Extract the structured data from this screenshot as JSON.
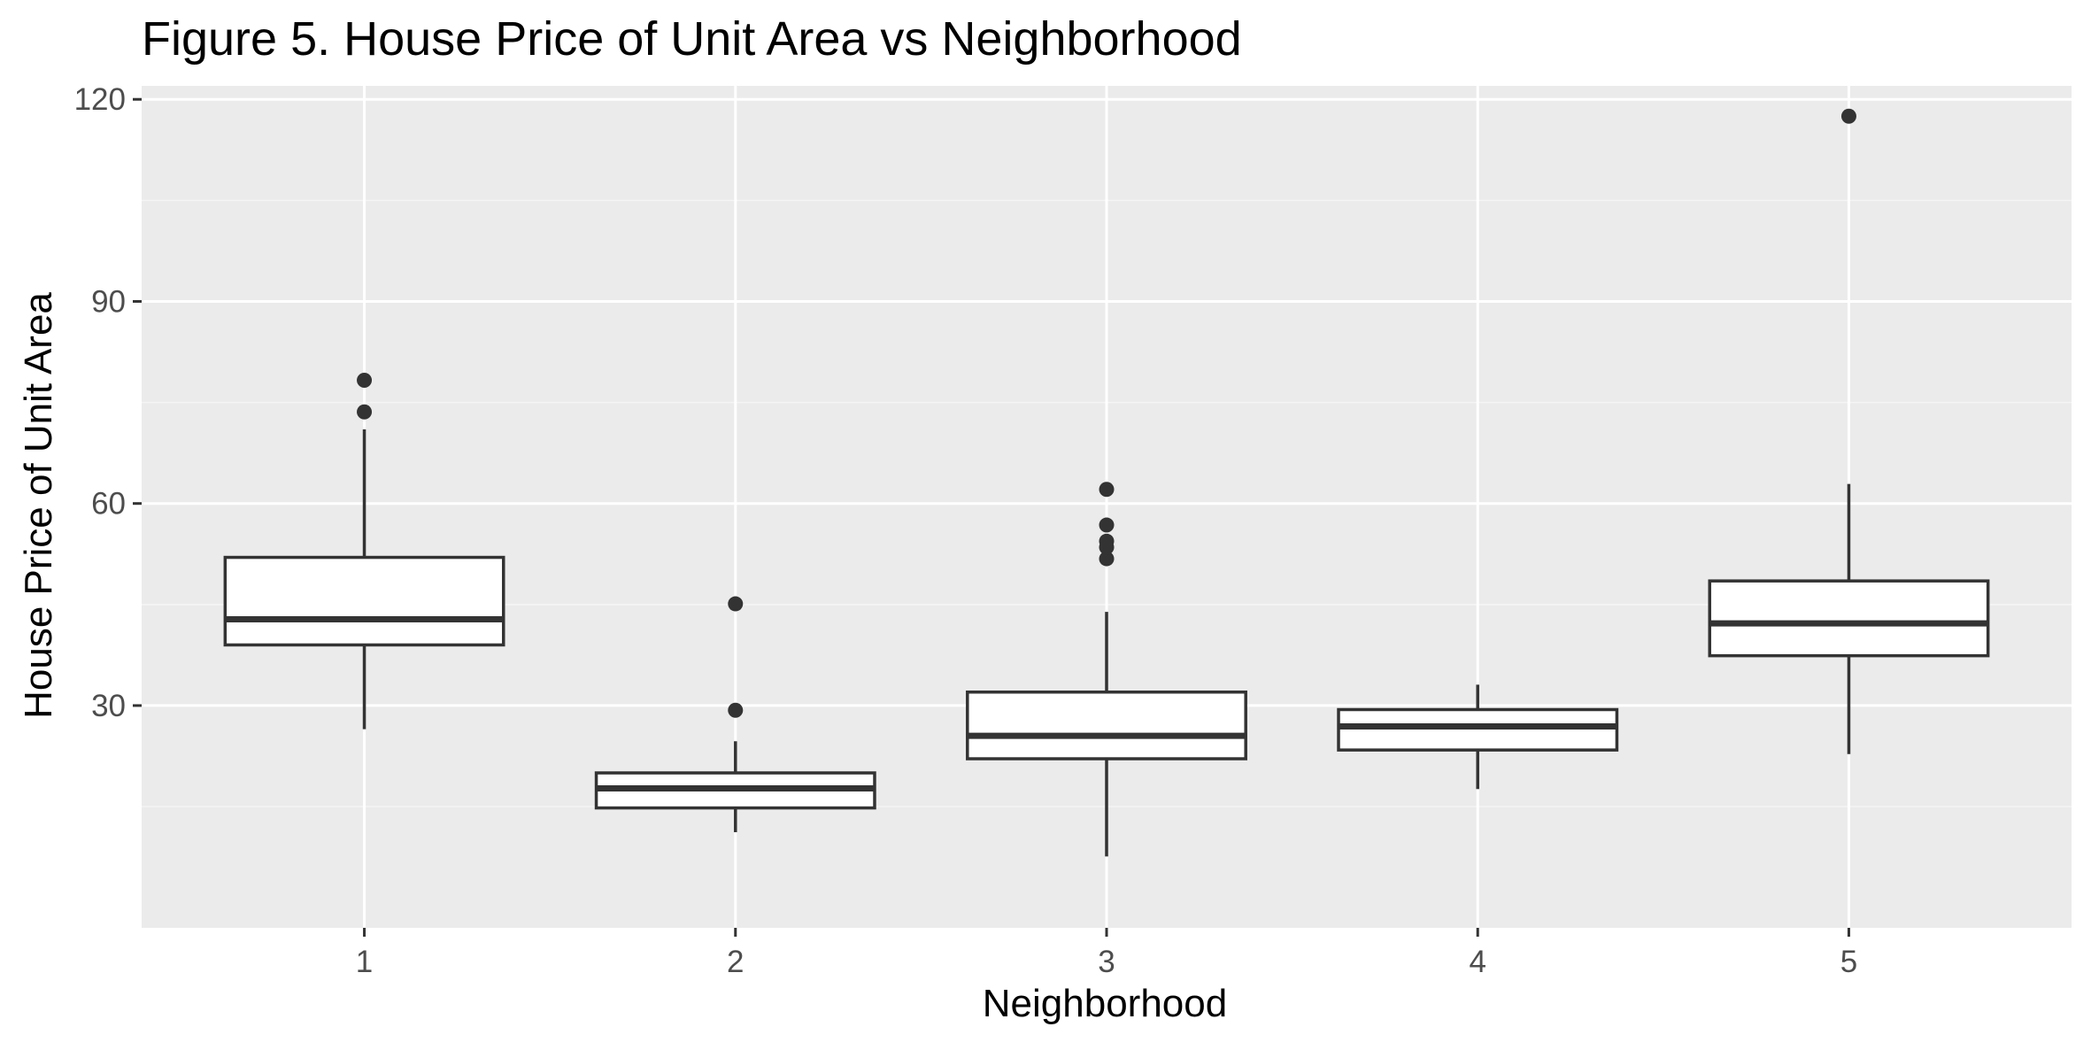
{
  "chart_data": {
    "type": "boxplot",
    "title": "Figure 5. House Price of Unit Area vs Neighborhood",
    "xlabel": "Neighborhood",
    "ylabel": "House Price of Unit Area",
    "categories": [
      "1",
      "2",
      "3",
      "4",
      "5"
    ],
    "ylim": [
      -3,
      122
    ],
    "yticks": [
      30,
      60,
      90,
      120
    ],
    "yticks_labels": [
      "30",
      "60",
      "90",
      "120"
    ],
    "grid": true,
    "legend": "none",
    "boxes": [
      {
        "category": "1",
        "whisker_low": 26.5,
        "q1": 39.0,
        "median": 42.8,
        "q3": 52.0,
        "whisker_high": 71.0,
        "outliers": [
          73.6,
          78.3
        ]
      },
      {
        "category": "2",
        "whisker_low": 11.2,
        "q1": 14.8,
        "median": 17.7,
        "q3": 20.0,
        "whisker_high": 24.7,
        "outliers": [
          29.3,
          45.1
        ]
      },
      {
        "category": "3",
        "whisker_low": 7.6,
        "q1": 22.1,
        "median": 25.5,
        "q3": 32.0,
        "whisker_high": 43.9,
        "outliers": [
          51.8,
          53.5,
          54.4,
          56.8,
          62.1
        ]
      },
      {
        "category": "4",
        "whisker_low": 17.6,
        "q1": 23.4,
        "median": 26.9,
        "q3": 29.4,
        "whisker_high": 33.1,
        "outliers": []
      },
      {
        "category": "5",
        "whisker_low": 22.8,
        "q1": 37.4,
        "median": 42.2,
        "q3": 48.5,
        "whisker_high": 62.9,
        "outliers": [
          117.5
        ]
      }
    ],
    "colors": {
      "panel_background": "#ebebeb",
      "grid_major": "#ffffff",
      "grid_minor": "#f5f5f5",
      "box_fill": "#ffffff",
      "box_stroke": "#333333",
      "tick_text": "#4d4d4d"
    }
  }
}
